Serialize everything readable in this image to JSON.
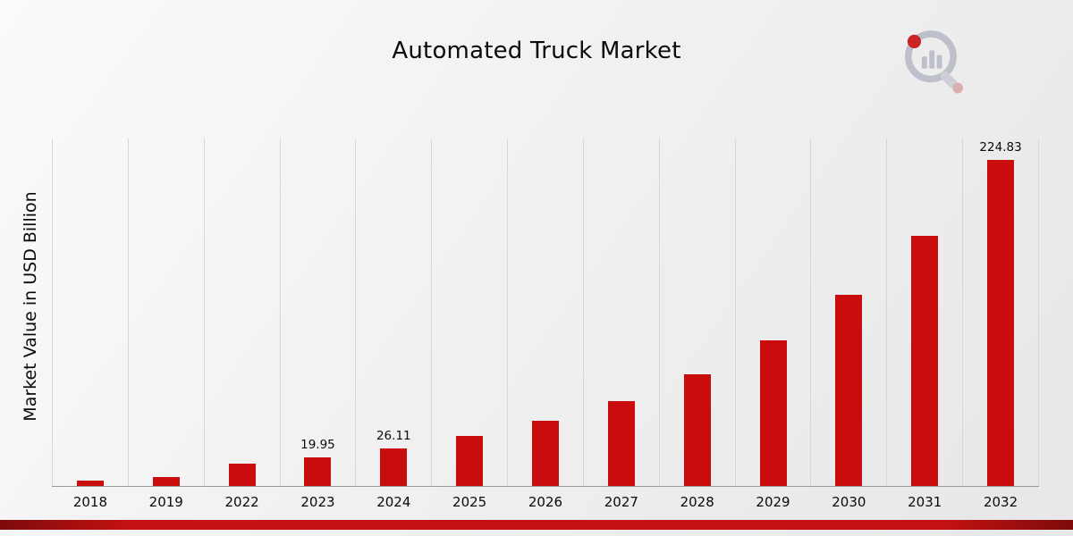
{
  "title": "Automated Truck Market",
  "ylabel": "Market Value in USD Billion",
  "logo": {
    "icon": "magnifier-bar-chart-logo"
  },
  "footer": {
    "accent_color": "#c41111"
  },
  "chart_data": {
    "type": "bar",
    "title": "Automated Truck Market",
    "xlabel": "",
    "ylabel": "Market Value in USD Billion",
    "bar_color": "#c90d0d",
    "ylim": [
      0,
      240
    ],
    "grid": "vertical-only",
    "legend": "none",
    "categories": [
      "2018",
      "2019",
      "2022",
      "2023",
      "2024",
      "2025",
      "2026",
      "2027",
      "2028",
      "2029",
      "2030",
      "2031",
      "2032"
    ],
    "values": [
      3.5,
      6.0,
      15.2,
      19.95,
      26.11,
      34.2,
      44.8,
      58.6,
      76.7,
      100.4,
      131.5,
      172.1,
      224.83
    ],
    "data_labels": [
      "",
      "",
      "",
      "19.95",
      "26.11",
      "",
      "",
      "",
      "",
      "",
      "",
      "",
      "224.83"
    ]
  }
}
